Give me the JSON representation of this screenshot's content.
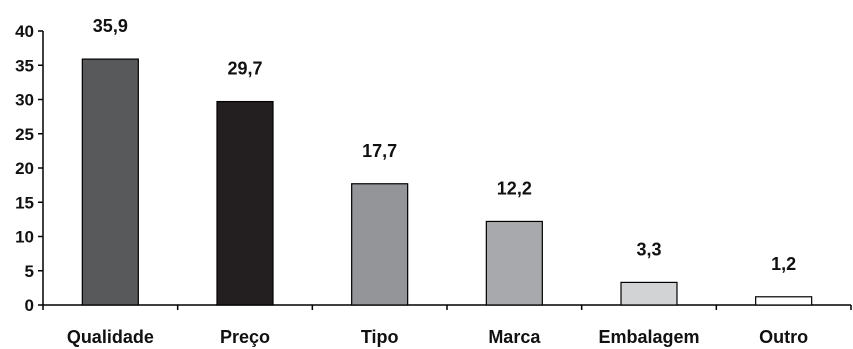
{
  "chart_data": {
    "type": "bar",
    "categories": [
      "Qualidade",
      "Preço",
      "Tipo",
      "Marca",
      "Embalagem",
      "Outro"
    ],
    "values": [
      35.9,
      29.7,
      17.7,
      12.2,
      3.3,
      1.2
    ],
    "value_labels": [
      "35,9",
      "29,7",
      "17,7",
      "12,2",
      "3,3",
      "1,2"
    ],
    "bar_colors": [
      "#58595b",
      "#231f20",
      "#939598",
      "#a7a9ac",
      "#d1d3d4",
      "#ffffff"
    ],
    "title": "",
    "xlabel": "",
    "ylabel": "",
    "ylim": [
      0,
      40
    ],
    "yticks": [
      0,
      5,
      10,
      15,
      20,
      25,
      30,
      35,
      40
    ],
    "grid": false,
    "legend": "none"
  }
}
